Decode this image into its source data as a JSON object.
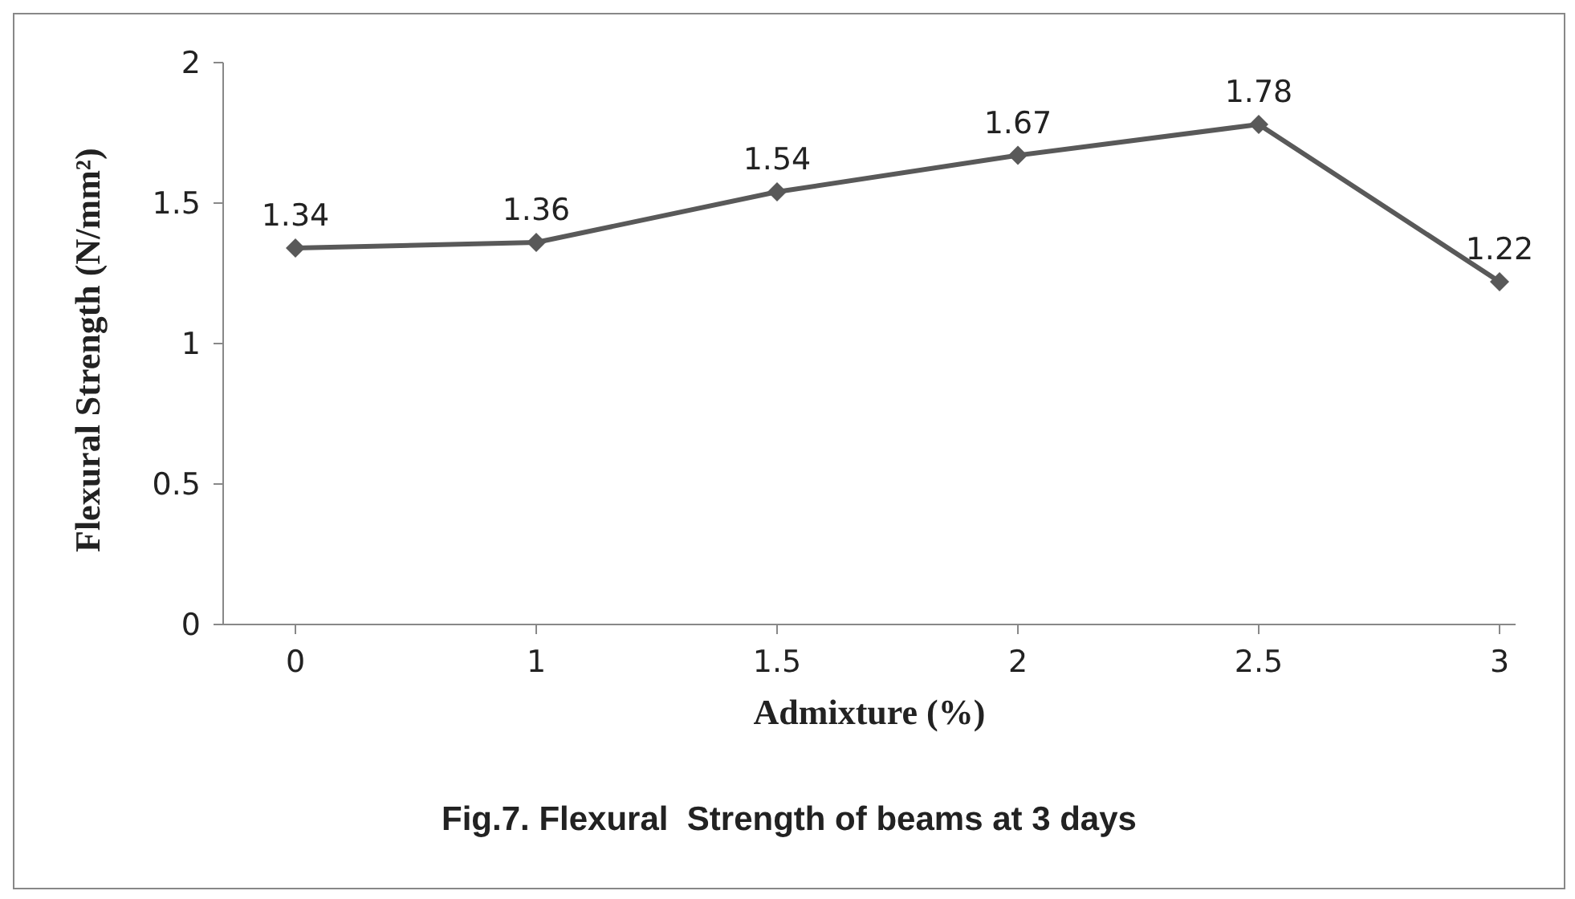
{
  "chart_data": {
    "type": "line",
    "title": "Fig.7. Flexural  Strength of beams at 3 days",
    "xlabel": "Admixture (%)",
    "ylabel": "Flexural Strength (N/mm²)",
    "categories": [
      "0",
      "1",
      "1.5",
      "2",
      "2.5",
      "3"
    ],
    "series": [
      {
        "color": "#595959",
        "values": [
          1.34,
          1.36,
          1.54,
          1.67,
          1.78,
          1.22
        ]
      }
    ],
    "ylim": [
      0,
      2
    ],
    "yticks": [
      0,
      0.5,
      1,
      1.5,
      2
    ],
    "marker": "diamond",
    "data_labels": true,
    "grid": false,
    "legend": false
  }
}
